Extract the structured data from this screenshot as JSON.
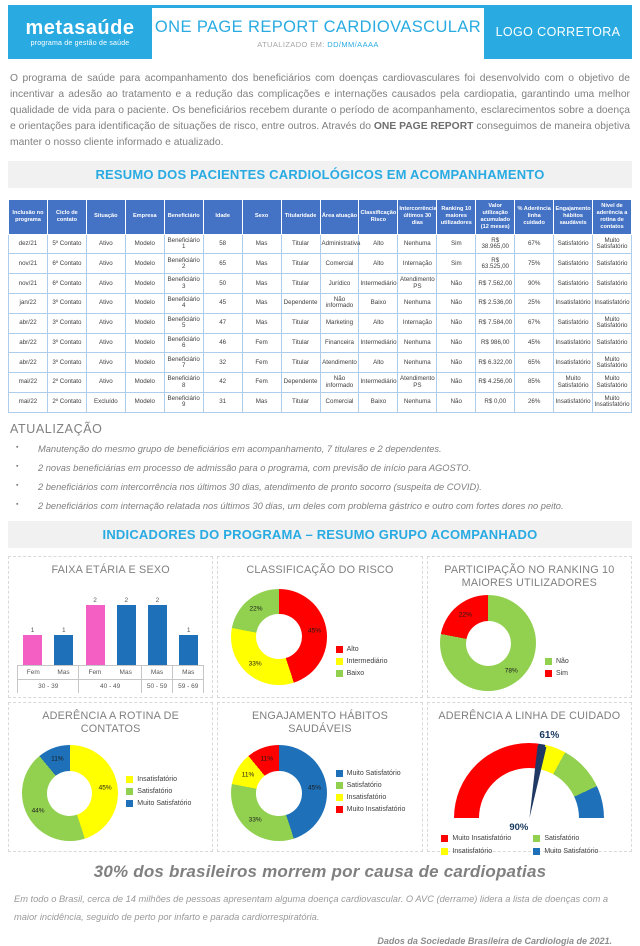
{
  "header": {
    "brand_name": "metasaúde",
    "brand_tagline": "programa de gestão de saúde",
    "title": "ONE PAGE REPORT CARDIOVASCULAR",
    "updated_label": "ATUALIZADO EM:",
    "updated_value": "DD/MM/AAAA",
    "logo_box_text": "LOGO CORRETORA",
    "accent_color": "#29abe2"
  },
  "intro": {
    "part1": "O programa de saúde para acompanhamento dos beneficiários com doenças cardiovasculares foi desenvolvido com o objetivo de incentivar a adesão ao tratamento e a redução das complicações e internações causados pela cardiopatia, garantindo uma melhor qualidade de vida para o paciente. Os beneficiários recebem durante o período de acompanhamento, esclarecimentos sobre a doença e orientações para identificação de situações de risco, entre outros. Através do ",
    "bold_text": "ONE PAGE REPORT",
    "part2": " conseguimos de maneira objetiva manter o nosso cliente informado e atualizado."
  },
  "sections": {
    "resumo_title": "RESUMO DOS PACIENTES CARDIOLÓGICOS EM ACOMPANHAMENTO",
    "indicadores_title": "INDICADORES DO PROGRAMA – RESUMO GRUPO ACOMPANHADO"
  },
  "table": {
    "headers": [
      "Inclusão no programa",
      "Ciclo de contato",
      "Situação",
      "Empresa",
      "Beneficiário",
      "Idade",
      "Sexo",
      "Titularidade",
      "Área atuação",
      "Classificação Risco",
      "Intercorrência últimos 30 dias",
      "Ranking 10 maiores utilizadores",
      "Valor utilização acumulado (12 meses)",
      "% Aderência linha cuidado",
      "Engajamento hábitos saudáveis",
      "Nível de aderência a rotina de contatos"
    ],
    "rows": [
      [
        "dez/21",
        "5º Contato",
        "Ativo",
        "Modelo",
        "Beneficiário 1",
        "58",
        "Mas",
        "Titular",
        "Administrativa",
        "Alto",
        "Nenhuma",
        "Sim",
        "R$ 38.965,00",
        "67%",
        "Satisfatório",
        "Muito Satisfatório"
      ],
      [
        "nov/21",
        "6º Contato",
        "Ativo",
        "Modelo",
        "Beneficiário 2",
        "65",
        "Mas",
        "Titular",
        "Comercial",
        "Alto",
        "Internação",
        "Sim",
        "R$ 63.525,00",
        "75%",
        "Satisfatório",
        "Satisfatório"
      ],
      [
        "nov/21",
        "6º Contato",
        "Ativo",
        "Modelo",
        "Beneficiário 3",
        "50",
        "Mas",
        "Titular",
        "Jurídico",
        "Intermediário",
        "Atendimento PS",
        "Não",
        "R$ 7.562,00",
        "90%",
        "Satisfatório",
        "Satisfatório"
      ],
      [
        "jan/22",
        "3º Contato",
        "Ativo",
        "Modelo",
        "Beneficiário 4",
        "45",
        "Mas",
        "Dependente",
        "Não informado",
        "Baixo",
        "Nenhuma",
        "Não",
        "R$ 2.536,00",
        "25%",
        "Insatisfatório",
        "Insatisfatório"
      ],
      [
        "abr/22",
        "3º Contato",
        "Ativo",
        "Modelo",
        "Beneficiário 5",
        "47",
        "Mas",
        "Titular",
        "Marketing",
        "Alto",
        "Internação",
        "Não",
        "R$ 7.584,00",
        "67%",
        "Satisfatório",
        "Muito Satisfatório"
      ],
      [
        "abr/22",
        "3º Contato",
        "Ativo",
        "Modelo",
        "Beneficiário 6",
        "46",
        "Fem",
        "Titular",
        "Financeira",
        "Intermediário",
        "Nenhuma",
        "Não",
        "R$ 986,00",
        "45%",
        "Insatisfatório",
        "Satisfatório"
      ],
      [
        "abr/22",
        "3º Contato",
        "Ativo",
        "Modelo",
        "Beneficiário 7",
        "32",
        "Fem",
        "Titular",
        "Atendimento",
        "Alto",
        "Nenhuma",
        "Não",
        "R$ 6.322,00",
        "65%",
        "Insatisfatório",
        "Muito Satisfatório"
      ],
      [
        "mai/22",
        "2º Contato",
        "Ativo",
        "Modelo",
        "Beneficiário 8",
        "42",
        "Fem",
        "Dependente",
        "Não informado",
        "Intermediário",
        "Atendimento PS",
        "Não",
        "R$ 4.256,00",
        "85%",
        "Muito Satisfatório",
        "Muito Satisfatório"
      ],
      [
        "mai/22",
        "2º Contato",
        "Excluído",
        "Modelo",
        "Beneficiário 9",
        "31",
        "Mas",
        "Titular",
        "Comercial",
        "Baixo",
        "Nenhuma",
        "Não",
        "R$ 0,00",
        "26%",
        "Insatisfatório",
        "Muito Insatisfatório"
      ]
    ]
  },
  "update_section": {
    "title": "ATUALIZAÇÃO",
    "bullets": [
      "Manutenção do mesmo grupo de beneficiários em acompanhamento, 7 titulares e 2 dependentes.",
      "2 novas beneficiárias em processo de admissão para o programa, com previsão de início para AGOSTO.",
      "2 beneficiários com intercorrência nos últimos 30 dias, atendimento de pronto socorro (suspeita de COVID).",
      "2 beneficiários com internação relatada nos últimos 30 dias, um deles com problema gástrico e outro com fortes dores no peito."
    ]
  },
  "chart_data": [
    {
      "id": "faixa-etaria-sexo",
      "type": "grouped_bar",
      "title": "FAIXA ETÁRIA E SEXO",
      "ylim": [
        0,
        2
      ],
      "groups": [
        {
          "label": "30 - 39",
          "bars": [
            {
              "label": "Fem",
              "value": 1,
              "color": "#f45fc4"
            },
            {
              "label": "Mas",
              "value": 1,
              "color": "#1e70b8"
            }
          ]
        },
        {
          "label": "40 - 49",
          "bars": [
            {
              "label": "Fem",
              "value": 2,
              "color": "#f45fc4"
            },
            {
              "label": "Mas",
              "value": 2,
              "color": "#1e70b8"
            }
          ]
        },
        {
          "label": "50 - 59",
          "bars": [
            {
              "label": "Mas",
              "value": 2,
              "color": "#1e70b8"
            }
          ]
        },
        {
          "label": "59 - 69",
          "bars": [
            {
              "label": "Mas",
              "value": 1,
              "color": "#1e70b8"
            }
          ]
        }
      ]
    },
    {
      "id": "classificacao-risco",
      "type": "donut",
      "title": "CLASSIFICAÇÃO DO RISCO",
      "legend_position": "right-bottom",
      "slices": [
        {
          "label": "Alto",
          "value": 45,
          "color": "#fe0000"
        },
        {
          "label": "Intermediário",
          "value": 33,
          "color": "#ffff00"
        },
        {
          "label": "Baixo",
          "value": 22,
          "color": "#92d050"
        }
      ]
    },
    {
      "id": "ranking-utilizadores",
      "type": "donut",
      "title": "PARTICIPAÇÃO NO RANKING 10 MAIORES UTILIZADORES",
      "legend_position": "right-bottom",
      "slices": [
        {
          "label": "Não",
          "value": 78,
          "color": "#92d050"
        },
        {
          "label": "Sim",
          "value": 22,
          "color": "#fe0000"
        }
      ]
    },
    {
      "id": "aderencia-contatos",
      "type": "donut",
      "title": "ADERÊNCIA A ROTINA DE CONTATOS",
      "legend_position": "right-middle",
      "slices": [
        {
          "label": "Insatisfatório",
          "value": 45,
          "color": "#ffff00"
        },
        {
          "label": "Satisfatório",
          "value": 44,
          "color": "#92d050"
        },
        {
          "label": "Muito Satisfatório",
          "value": 11,
          "color": "#1e70b8"
        }
      ]
    },
    {
      "id": "engajamento-habitos",
      "type": "donut",
      "title": "ENGAJAMENTO HÁBITOS SAUDÁVEIS",
      "legend_position": "right-middle",
      "slices": [
        {
          "label": "Muito Satisfatório",
          "value": 45,
          "color": "#1e70b8"
        },
        {
          "label": "Satisfatório",
          "value": 33,
          "color": "#92d050"
        },
        {
          "label": "Insatisfatório",
          "value": 11,
          "color": "#ffff00"
        },
        {
          "label": "Muito Insatisfatório",
          "value": 11,
          "color": "#fe0000"
        }
      ]
    },
    {
      "id": "aderencia-linha-cuidado",
      "type": "gauge",
      "title": "ADERÊNCIA A LINHA DE CUIDADO",
      "top_label": "61%",
      "center_label": "90%",
      "segments": [
        {
          "label": "Muito Insatisfatório",
          "value": 54,
          "color": "#fe0000"
        },
        {
          "label": "needle",
          "value": 3,
          "color": "#1f3864",
          "is_needle": true
        },
        {
          "label": "Insatisfatório",
          "value": 9,
          "color": "#ffff00"
        },
        {
          "label": "Satisfatório",
          "value": 20,
          "color": "#92d050"
        },
        {
          "label": "Muito Satisfatório",
          "value": 14,
          "color": "#1e70b8"
        }
      ],
      "legend": [
        {
          "label": "Muito Insatisfatório",
          "color": "#fe0000"
        },
        {
          "label": "Satisfatório",
          "color": "#92d050"
        },
        {
          "label": "Insatisfatório",
          "color": "#ffff00"
        },
        {
          "label": "Muito Satisfatório",
          "color": "#1e70b8"
        }
      ]
    }
  ],
  "footer": {
    "headline": "30% dos brasileiros morrem por causa de cardiopatias",
    "paragraph": "Em todo o Brasil, cerca de 14 milhões de pessoas apresentam alguma doença cardiovascular. O AVC (derrame) lidera a lista de doenças com a maior incidência, seguido de perto por infarto e parada cardiorrespiratória.",
    "source": "Dados da Sociedade Brasileira de Cardiologia de 2021."
  }
}
